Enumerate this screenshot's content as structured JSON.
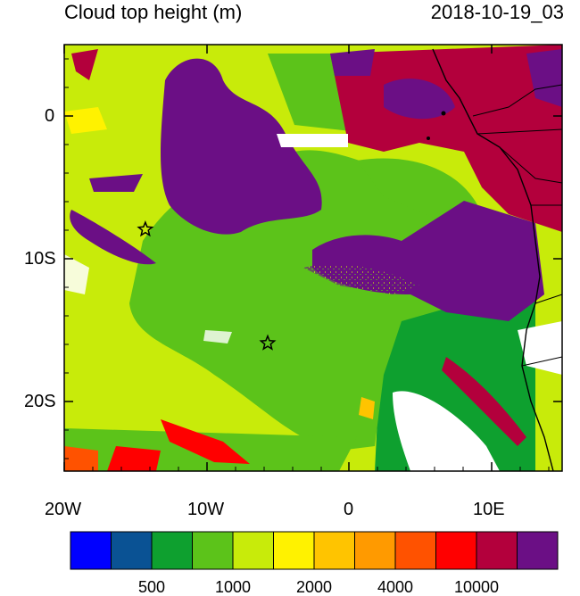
{
  "header": {
    "title": "Cloud top height (m)",
    "datetime": "2018-10-19_03"
  },
  "map": {
    "x_axis_labels": [
      "20W",
      "10W",
      "0",
      "10E"
    ],
    "y_axis_labels": [
      "0",
      "10S",
      "20S"
    ],
    "markers": [
      {
        "name": "star-marker-1",
        "lon": -14.3,
        "lat": -8.0
      },
      {
        "name": "star-marker-2",
        "lon": -5.7,
        "lat": -16.0
      }
    ]
  },
  "colorbar": {
    "colors": [
      "#0000ff",
      "#0a5294",
      "#0ea02f",
      "#5cc31a",
      "#c8eb0a",
      "#fff200",
      "#ffc400",
      "#ff9a00",
      "#ff5200",
      "#ff0000",
      "#b3003c",
      "#6b0f85"
    ],
    "labels": [
      "500",
      "1000",
      "2000",
      "4000",
      "10000"
    ]
  }
}
